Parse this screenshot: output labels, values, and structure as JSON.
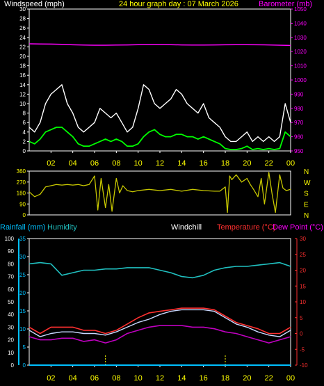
{
  "header_top": {
    "left": "Windspeed (mph)",
    "center": "24 hour graph day : 07 March 2026",
    "right": "Barometer (mb)"
  },
  "header_bottom": {
    "rainfall": "Rainfall (mm)",
    "humidity": "Humidity",
    "windchill": "Windchill",
    "temperature": "Temperature (°C)",
    "dewpoint": "Dew Point (°C)"
  },
  "colors": {
    "background": "#000000",
    "axis": "#ffffff",
    "time_labels": "#ffff00",
    "windspeed_gust": "#ffffff",
    "windspeed_avg": "#00ff00",
    "barometer": "#ff00ff",
    "wind_direction": "#c8c800",
    "rainfall": "#00c0ff",
    "humidity": "#20c0c0",
    "windchill": "#c8d8ff",
    "temperature": "#ff3030",
    "dewpoint": "#c000c0",
    "night_marker": "#ffff00"
  },
  "chart_data": [
    {
      "type": "line",
      "name": "windspeed-barometer",
      "x_ticks": [
        "02",
        "04",
        "06",
        "08",
        "10",
        "12",
        "14",
        "16",
        "18",
        "20",
        "22",
        "00"
      ],
      "x_range_hours": [
        0,
        24
      ],
      "y_left_label": "Windspeed (mph)",
      "y_left_range": [
        0,
        30
      ],
      "y_left_ticks": [
        "0",
        "2",
        "4",
        "6",
        "8",
        "10",
        "12",
        "14",
        "16",
        "18",
        "20",
        "22",
        "24",
        "26",
        "28",
        "30"
      ],
      "y_right_label": "Barometer (mb)",
      "y_right_range": [
        950,
        1050
      ],
      "y_right_ticks": [
        "950",
        "960",
        "970",
        "980",
        "990",
        "1000",
        "1010",
        "1020",
        "1030",
        "1040",
        "1050"
      ],
      "series": [
        {
          "name": "Barometer",
          "x": [
            0,
            1,
            2,
            3,
            4,
            5,
            6,
            7,
            8,
            9,
            10,
            11,
            12,
            13,
            14,
            15,
            16,
            17,
            18,
            19,
            20,
            21,
            22,
            23,
            24
          ],
          "values": [
            1025.5,
            1025.4,
            1025.3,
            1025.1,
            1024.8,
            1024.6,
            1024.5,
            1024.5,
            1024.6,
            1024.7,
            1024.9,
            1025.0,
            1025.0,
            1024.9,
            1024.7,
            1024.6,
            1024.6,
            1024.7,
            1024.8,
            1024.9,
            1024.9,
            1024.8,
            1024.7,
            1024.5,
            1024.3
          ]
        },
        {
          "name": "Gust",
          "x": [
            0,
            0.5,
            1,
            1.5,
            2,
            2.5,
            3,
            3.5,
            4,
            4.5,
            5,
            5.5,
            6,
            6.5,
            7,
            7.5,
            8,
            8.5,
            9,
            9.5,
            10,
            10.5,
            11,
            11.5,
            12,
            12.5,
            13,
            13.5,
            14,
            14.5,
            15,
            15.5,
            16,
            16.5,
            17,
            17.5,
            18,
            18.5,
            19,
            19.5,
            20,
            20.5,
            21,
            21.5,
            22,
            22.5,
            23,
            23.5,
            24
          ],
          "values": [
            5,
            4,
            6,
            10,
            12,
            13,
            14,
            10,
            8,
            5,
            4,
            5,
            6,
            9,
            8,
            7,
            8,
            6,
            4,
            5,
            9,
            14,
            13,
            10,
            9,
            10,
            11,
            13,
            12,
            10,
            9,
            8,
            10,
            7,
            6,
            5,
            3,
            2,
            2,
            3,
            4,
            2,
            3,
            2,
            3,
            2,
            3,
            10,
            6
          ]
        },
        {
          "name": "Average",
          "x": [
            0,
            0.5,
            1,
            1.5,
            2,
            2.5,
            3,
            3.5,
            4,
            4.5,
            5,
            5.5,
            6,
            6.5,
            7,
            7.5,
            8,
            8.5,
            9,
            9.5,
            10,
            10.5,
            11,
            11.5,
            12,
            12.5,
            13,
            13.5,
            14,
            14.5,
            15,
            15.5,
            16,
            16.5,
            17,
            17.5,
            18,
            18.5,
            19,
            19.5,
            20,
            20.5,
            21,
            21.5,
            22,
            22.5,
            23,
            23.5,
            24
          ],
          "values": [
            2,
            1.5,
            2.5,
            4,
            4.5,
            5,
            5,
            4,
            3,
            1.5,
            1,
            1,
            1.5,
            2,
            2.5,
            2,
            2.5,
            2,
            1,
            1,
            1.5,
            3,
            4,
            4.5,
            3.5,
            3,
            3,
            3.5,
            3.5,
            3,
            3,
            2.5,
            3,
            2.5,
            2,
            1.5,
            0.5,
            0.3,
            0.3,
            0.5,
            1,
            0.3,
            0.5,
            0.3,
            0.5,
            0.3,
            0.5,
            4,
            3
          ]
        }
      ]
    },
    {
      "type": "line",
      "name": "wind-direction",
      "x_range_hours": [
        0,
        24
      ],
      "y_range": [
        0,
        360
      ],
      "y_ticks": [
        "0",
        "90",
        "180",
        "270",
        "360"
      ],
      "compass_labels": [
        "N",
        "W",
        "S",
        "E",
        "N"
      ],
      "series": [
        {
          "name": "Direction",
          "x": [
            0,
            0.5,
            1,
            1.5,
            2,
            2.5,
            3,
            3.5,
            4,
            4.5,
            5,
            5.5,
            6,
            6.3,
            6.6,
            7,
            7.3,
            7.6,
            8,
            8.3,
            8.6,
            9,
            9.5,
            10,
            11,
            12,
            13,
            14,
            15,
            16,
            17,
            17.5,
            18,
            18.2,
            18.4,
            18.6,
            19,
            19.5,
            20,
            20.3,
            20.6,
            21,
            21.3,
            21.6,
            22,
            22.3,
            22.6,
            23,
            23.3,
            23.6,
            24
          ],
          "values": [
            190,
            150,
            170,
            230,
            240,
            250,
            245,
            250,
            245,
            250,
            240,
            250,
            320,
            40,
            300,
            60,
            250,
            30,
            300,
            180,
            240,
            200,
            190,
            200,
            210,
            200,
            210,
            195,
            210,
            200,
            195,
            195,
            230,
            20,
            320,
            290,
            330,
            270,
            300,
            250,
            210,
            150,
            300,
            90,
            350,
            170,
            20,
            330,
            220,
            200,
            210
          ]
        }
      ]
    },
    {
      "type": "line",
      "name": "temperature-humidity-rain",
      "x_range_hours": [
        0,
        24
      ],
      "y_humidity_range": [
        0,
        100
      ],
      "y_humidity_ticks": [
        "0",
        "10",
        "20",
        "30",
        "40",
        "50",
        "60",
        "70",
        "80",
        "90",
        "100"
      ],
      "y_rain_range": [
        0,
        35
      ],
      "y_rain_ticks": [
        "0",
        "5",
        "10",
        "15",
        "20",
        "25",
        "30",
        "35"
      ],
      "y_temp_range": [
        -10,
        30
      ],
      "y_temp_ticks": [
        "-10",
        "-5",
        "0",
        "5",
        "10",
        "15",
        "20",
        "25",
        "30"
      ],
      "series": [
        {
          "name": "Humidity",
          "x": [
            0,
            1,
            2,
            3,
            4,
            5,
            6,
            7,
            8,
            9,
            10,
            11,
            12,
            13,
            14,
            15,
            16,
            17,
            18,
            19,
            20,
            21,
            22,
            23,
            24
          ],
          "values": [
            80,
            81,
            80,
            71,
            73,
            75,
            75,
            76,
            76,
            77,
            77,
            77,
            75,
            73,
            70,
            69,
            71,
            75,
            77,
            78,
            78,
            79,
            80,
            81,
            78
          ]
        },
        {
          "name": "Temperature",
          "x": [
            0,
            1,
            2,
            3,
            4,
            5,
            6,
            7,
            8,
            9,
            10,
            11,
            12,
            13,
            14,
            15,
            16,
            17,
            18,
            19,
            20,
            21,
            22,
            23,
            24
          ],
          "values": [
            2,
            0,
            2,
            2,
            2,
            1,
            1,
            0,
            1,
            3,
            5,
            6.5,
            7,
            7.5,
            8,
            8,
            8,
            7.5,
            5.5,
            3.5,
            2.5,
            1.5,
            0,
            0,
            2
          ]
        },
        {
          "name": "Windchill",
          "x": [
            0,
            1,
            2,
            3,
            4,
            5,
            6,
            7,
            8,
            9,
            10,
            11,
            12,
            13,
            14,
            15,
            16,
            17,
            18,
            19,
            20,
            21,
            22,
            23,
            24
          ],
          "values": [
            1,
            -1,
            0,
            0.5,
            0.5,
            0,
            0,
            -0.5,
            0.5,
            2,
            3.5,
            4.5,
            6,
            7,
            7.5,
            7.5,
            7.5,
            7,
            5,
            3,
            2,
            0.5,
            -0.5,
            -1,
            1
          ]
        },
        {
          "name": "Dew Point",
          "x": [
            0,
            1,
            2,
            3,
            4,
            5,
            6,
            7,
            8,
            9,
            10,
            11,
            12,
            13,
            14,
            15,
            16,
            17,
            18,
            19,
            20,
            21,
            22,
            23,
            24
          ],
          "values": [
            -1,
            -2,
            -2,
            -1.5,
            -1.5,
            -2.5,
            -2,
            -3,
            -2,
            0,
            1,
            2,
            2.5,
            2.5,
            2.5,
            2,
            2,
            1.5,
            0.5,
            0,
            -1,
            -2,
            -3,
            -2,
            -1
          ]
        },
        {
          "name": "Rainfall",
          "x": [
            0,
            24
          ],
          "values": [
            0,
            0
          ]
        }
      ]
    }
  ]
}
